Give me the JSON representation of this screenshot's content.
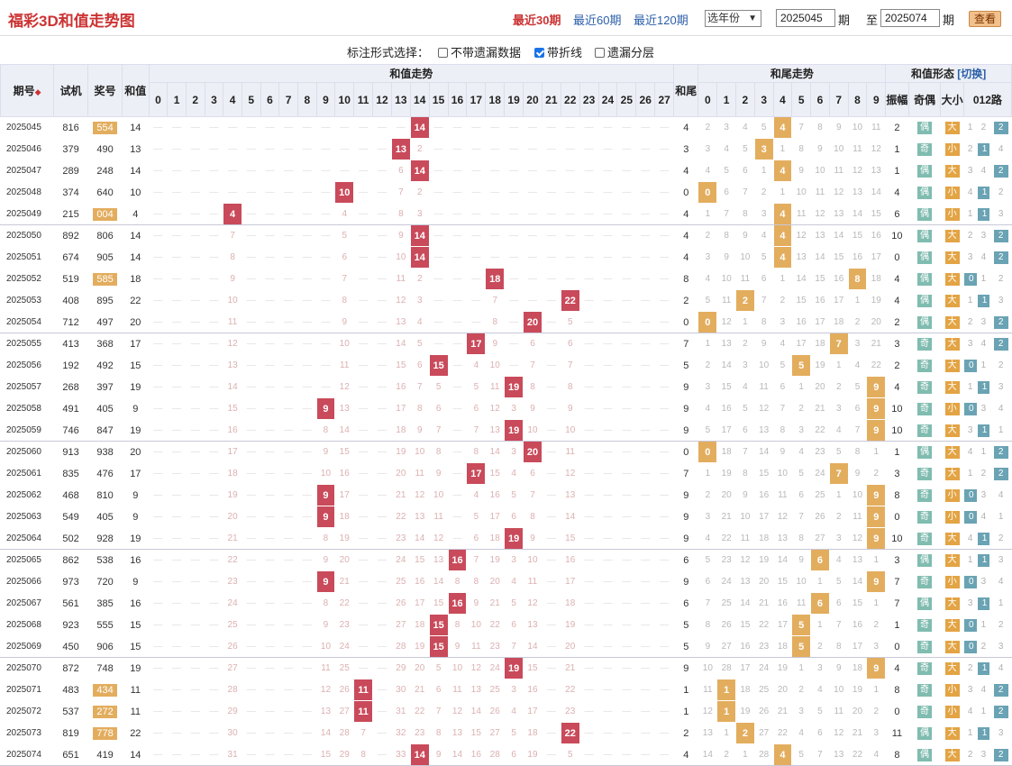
{
  "header": {
    "title": "福彩3D和值走势图",
    "range_30": "最近30期",
    "range_60": "最近60期",
    "range_120": "最近120期",
    "year_select": "选年份",
    "from_issue": "2025045",
    "to_label": "至",
    "to_issue": "2025074",
    "issue_label": "期",
    "issue_label2": "期",
    "query_button": "查看"
  },
  "options": {
    "label": "标注形式选择：",
    "opt1": "不带遗漏数据",
    "opt2": "带折线",
    "opt3": "遗漏分层",
    "opt1_checked": false,
    "opt2_checked": true,
    "opt3_checked": false
  },
  "table": {
    "col_issue": "期号",
    "col_sj": "试机",
    "col_jh": "奖号",
    "col_hz": "和值",
    "col_sum_trend": "和值走势",
    "col_tail": "和尾",
    "col_tail_trend": "和尾走势",
    "col_form": "和值形态",
    "switch": "[切换]",
    "col_zf": "振幅",
    "col_oe": "奇偶",
    "col_bs": "大小",
    "col_012": "012路",
    "sum_cols": [
      "0",
      "1",
      "2",
      "3",
      "4",
      "5",
      "6",
      "7",
      "8",
      "9",
      "10",
      "11",
      "12",
      "13",
      "14",
      "15",
      "16",
      "17",
      "18",
      "19",
      "20",
      "21",
      "22",
      "23",
      "24",
      "25",
      "26",
      "27"
    ],
    "tail_cols": [
      "0",
      "1",
      "2",
      "3",
      "4",
      "5",
      "6",
      "7",
      "8",
      "9"
    ],
    "odd": "奇",
    "even": "偶",
    "big": "大",
    "small": "小"
  },
  "rows": [
    {
      "issue": "2025045",
      "sj": "816",
      "jh": "554",
      "rep": true,
      "hz": "14",
      "tail": "4",
      "zf": "2"
    },
    {
      "issue": "2025046",
      "sj": "379",
      "jh": "490",
      "rep": false,
      "hz": "13",
      "tail": "3",
      "zf": "1"
    },
    {
      "issue": "2025047",
      "sj": "289",
      "jh": "248",
      "rep": false,
      "hz": "14",
      "tail": "4",
      "zf": "1"
    },
    {
      "issue": "2025048",
      "sj": "374",
      "jh": "640",
      "rep": false,
      "hz": "10",
      "tail": "0",
      "zf": "4"
    },
    {
      "issue": "2025049",
      "sj": "215",
      "jh": "004",
      "rep": true,
      "hz": "4",
      "tail": "4",
      "zf": "6"
    },
    {
      "issue": "2025050",
      "sj": "892",
      "jh": "806",
      "rep": false,
      "hz": "14",
      "tail": "4",
      "zf": "10"
    },
    {
      "issue": "2025051",
      "sj": "674",
      "jh": "905",
      "rep": false,
      "hz": "14",
      "tail": "4",
      "zf": "0"
    },
    {
      "issue": "2025052",
      "sj": "519",
      "jh": "585",
      "rep": true,
      "hz": "18",
      "tail": "8",
      "zf": "4"
    },
    {
      "issue": "2025053",
      "sj": "408",
      "jh": "895",
      "rep": false,
      "hz": "22",
      "tail": "2",
      "zf": "4"
    },
    {
      "issue": "2025054",
      "sj": "712",
      "jh": "497",
      "rep": false,
      "hz": "20",
      "tail": "0",
      "zf": "2"
    },
    {
      "issue": "2025055",
      "sj": "413",
      "jh": "368",
      "rep": false,
      "hz": "17",
      "tail": "7",
      "zf": "3"
    },
    {
      "issue": "2025056",
      "sj": "192",
      "jh": "492",
      "rep": false,
      "hz": "15",
      "tail": "5",
      "zf": "2"
    },
    {
      "issue": "2025057",
      "sj": "268",
      "jh": "397",
      "rep": false,
      "hz": "19",
      "tail": "9",
      "zf": "4"
    },
    {
      "issue": "2025058",
      "sj": "491",
      "jh": "405",
      "rep": false,
      "hz": "9",
      "tail": "9",
      "zf": "10"
    },
    {
      "issue": "2025059",
      "sj": "746",
      "jh": "847",
      "rep": false,
      "hz": "19",
      "tail": "9",
      "zf": "10"
    },
    {
      "issue": "2025060",
      "sj": "913",
      "jh": "938",
      "rep": false,
      "hz": "20",
      "tail": "0",
      "zf": "1"
    },
    {
      "issue": "2025061",
      "sj": "835",
      "jh": "476",
      "rep": false,
      "hz": "17",
      "tail": "7",
      "zf": "3"
    },
    {
      "issue": "2025062",
      "sj": "468",
      "jh": "810",
      "rep": false,
      "hz": "9",
      "tail": "9",
      "zf": "8"
    },
    {
      "issue": "2025063",
      "sj": "549",
      "jh": "405",
      "rep": false,
      "hz": "9",
      "tail": "9",
      "zf": "0"
    },
    {
      "issue": "2025064",
      "sj": "502",
      "jh": "928",
      "rep": false,
      "hz": "19",
      "tail": "9",
      "zf": "10"
    },
    {
      "issue": "2025065",
      "sj": "862",
      "jh": "538",
      "rep": false,
      "hz": "16",
      "tail": "6",
      "zf": "3"
    },
    {
      "issue": "2025066",
      "sj": "973",
      "jh": "720",
      "rep": false,
      "hz": "9",
      "tail": "9",
      "zf": "7"
    },
    {
      "issue": "2025067",
      "sj": "561",
      "jh": "385",
      "rep": false,
      "hz": "16",
      "tail": "6",
      "zf": "7"
    },
    {
      "issue": "2025068",
      "sj": "923",
      "jh": "555",
      "rep": false,
      "hz": "15",
      "tail": "5",
      "zf": "1"
    },
    {
      "issue": "2025069",
      "sj": "450",
      "jh": "906",
      "rep": false,
      "hz": "15",
      "tail": "5",
      "zf": "0"
    },
    {
      "issue": "2025070",
      "sj": "872",
      "jh": "748",
      "rep": false,
      "hz": "19",
      "tail": "9",
      "zf": "4"
    },
    {
      "issue": "2025071",
      "sj": "483",
      "jh": "434",
      "rep": true,
      "hz": "11",
      "tail": "1",
      "zf": "8"
    },
    {
      "issue": "2025072",
      "sj": "537",
      "jh": "272",
      "rep": true,
      "hz": "11",
      "tail": "1",
      "zf": "0"
    },
    {
      "issue": "2025073",
      "sj": "819",
      "jh": "778",
      "rep": true,
      "hz": "22",
      "tail": "2",
      "zf": "11"
    },
    {
      "issue": "2025074",
      "sj": "651",
      "jh": "419",
      "rep": false,
      "hz": "14",
      "tail": "4",
      "zf": "8"
    }
  ]
}
